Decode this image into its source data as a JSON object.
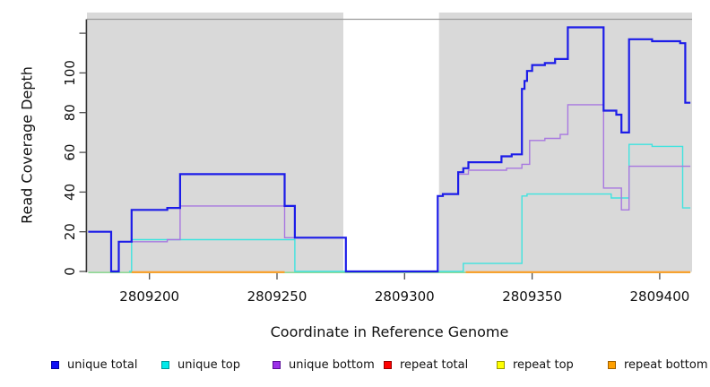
{
  "chart_data": {
    "type": "line",
    "subtype": "step-coverage-plot",
    "title": "",
    "xlabel": "Coordinate in Reference Genome",
    "ylabel": "Read Coverage Depth",
    "xlim": [
      2809176,
      2809412
    ],
    "ylim": [
      0,
      127
    ],
    "x_ticks": [
      2809200,
      2809250,
      2809300,
      2809350,
      2809400
    ],
    "x_tick_labels": [
      "2809200",
      "2809250",
      "2809300",
      "2809350",
      "2809400"
    ],
    "y_ticks": [
      0,
      20,
      40,
      60,
      80,
      100,
      120
    ],
    "y_tick_labels": [
      "0",
      "20",
      "40",
      "60",
      "80",
      "100",
      ""
    ],
    "grid": "off",
    "panel_bg": "#d9d9d9",
    "gap_region": {
      "x_start": 2809276,
      "x_end": 2809313.5,
      "fill": "#ffffff",
      "note": "no-data window, white band"
    },
    "draw_order": [
      4,
      1,
      2,
      0,
      5
    ],
    "series": [
      {
        "name": "unique total",
        "color": "#1c1ce8",
        "width": 2.2,
        "end": 2809412,
        "points": [
          [
            2809176,
            20
          ],
          [
            2809185,
            0
          ],
          [
            2809188,
            15
          ],
          [
            2809193,
            31
          ],
          [
            2809207,
            32
          ],
          [
            2809212,
            49
          ],
          [
            2809253,
            33
          ],
          [
            2809257,
            17
          ],
          [
            2809277,
            0
          ],
          [
            2809313,
            38
          ],
          [
            2809315,
            39
          ],
          [
            2809321,
            50
          ],
          [
            2809323,
            52
          ],
          [
            2809325,
            55
          ],
          [
            2809338,
            58
          ],
          [
            2809342,
            59
          ],
          [
            2809346,
            92
          ],
          [
            2809347,
            96
          ],
          [
            2809348,
            101
          ],
          [
            2809350,
            104
          ],
          [
            2809355,
            105
          ],
          [
            2809359,
            107
          ],
          [
            2809364,
            123
          ],
          [
            2809378,
            81
          ],
          [
            2809383,
            79
          ],
          [
            2809385,
            70
          ],
          [
            2809388,
            117
          ],
          [
            2809397,
            116
          ],
          [
            2809408,
            115
          ],
          [
            2809410,
            85
          ]
        ]
      },
      {
        "name": "unique top",
        "color": "#3fe3df",
        "width": 1.4,
        "end": 2809412,
        "points": [
          [
            2809192,
            0
          ],
          [
            2809193,
            16
          ],
          [
            2809257,
            0
          ],
          [
            2809323,
            4
          ],
          [
            2809346,
            38
          ],
          [
            2809348,
            39
          ],
          [
            2809381,
            37
          ],
          [
            2809388,
            64
          ],
          [
            2809397,
            63
          ],
          [
            2809409,
            32
          ]
        ]
      },
      {
        "name": "unique bottom",
        "color": "#a878e0",
        "width": 1.4,
        "end": 2809412,
        "points": [
          [
            2809187,
            0
          ],
          [
            2809188,
            15
          ],
          [
            2809207,
            16
          ],
          [
            2809212,
            33
          ],
          [
            2809253,
            17
          ],
          [
            2809277,
            0
          ],
          [
            2809313,
            38
          ],
          [
            2809315,
            39
          ],
          [
            2809321,
            49
          ],
          [
            2809325,
            51
          ],
          [
            2809340,
            52
          ],
          [
            2809346,
            54
          ],
          [
            2809349,
            66
          ],
          [
            2809355,
            67
          ],
          [
            2809361,
            69
          ],
          [
            2809364,
            84
          ],
          [
            2809378,
            42
          ],
          [
            2809385,
            31
          ],
          [
            2809388,
            53
          ]
        ]
      },
      {
        "name": "repeat total",
        "color": "#ff0000",
        "width": 1.4,
        "end": null,
        "points": [],
        "note": "depth 0 wherever covered; hidden beneath repeat top / repeat bottom zero lines"
      },
      {
        "name": "repeat top",
        "color": "#ffff00",
        "width": 1.4,
        "end": 2809412,
        "points": [
          [
            2809176,
            0
          ]
        ],
        "render_color": "#90d995",
        "render_width": 1.6,
        "y_offset": 1.2,
        "note": "flat at depth 0; overlapping the unique-top zero line it renders as a pale green blend"
      },
      {
        "name": "repeat bottom",
        "color": "#ff9e26",
        "width": 2.2,
        "segments": [
          [
            [
              2809193,
              0
            ]
          ],
          [
            [
              2809324,
              0
            ]
          ]
        ],
        "segment_ends": [
          2809253,
          2809412
        ],
        "y_offset": 0.8,
        "note": "flat at depth 0 in two covered intervals"
      }
    ]
  },
  "legend": {
    "items": [
      {
        "label": "unique total",
        "color": "#0d0df5",
        "border": "#0000a0"
      },
      {
        "label": "unique top",
        "color": "#00eaea",
        "border": "#009a9a"
      },
      {
        "label": "unique bottom",
        "color": "#9b30e8",
        "border": "#5a0d96"
      },
      {
        "label": "repeat total",
        "color": "#ff0000",
        "border": "#990000"
      },
      {
        "label": "repeat top",
        "color": "#ffff00",
        "border": "#9a9a00"
      },
      {
        "label": "repeat bottom",
        "color": "#ffa000",
        "border": "#a06000"
      }
    ]
  },
  "axis_style": {
    "axis_line_color": "#333333",
    "tick_color": "#4d4d4d",
    "panel_top_border_color": "#9a9a9a",
    "label_color": "#111111"
  }
}
